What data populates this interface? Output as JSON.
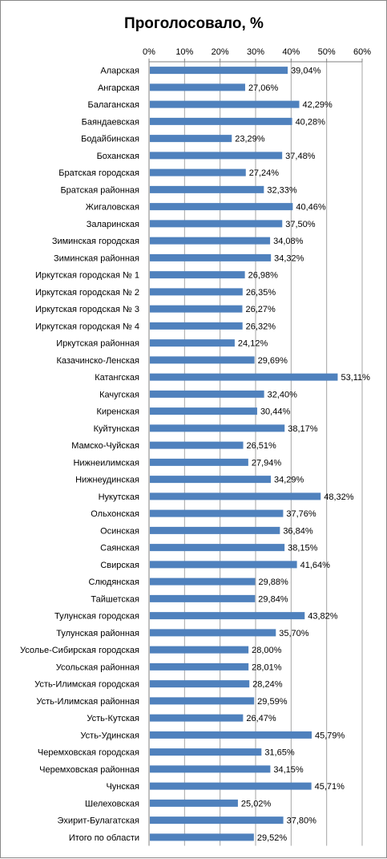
{
  "chart_data": {
    "type": "bar",
    "orientation": "horizontal",
    "title": "Проголосовало, %",
    "xlim": [
      0,
      60
    ],
    "x_ticks": [
      "0%",
      "10%",
      "20%",
      "30%",
      "40%",
      "50%",
      "60%"
    ],
    "grid": true,
    "legend": "none",
    "bar_color": "#4F81BD",
    "categories": [
      "Аларская",
      "Ангарская",
      "Балаганская",
      "Баяндаевская",
      "Бодайбинская",
      "Боханская",
      "Братская городская",
      "Братская районная",
      "Жигаловская",
      "Заларинская",
      "Зиминская городская",
      "Зиминская районная",
      "Иркутская городская № 1",
      "Иркутская городская № 2",
      "Иркутская городская № 3",
      "Иркутская городская № 4",
      "Иркутская районная",
      "Казачинско-Ленская",
      "Катангская",
      "Качугская",
      "Киренская",
      "Куйтунская",
      "Мамско-Чуйская",
      "Нижнеилимская",
      "Нижнеудинская",
      "Нукутская",
      "Ольхонская",
      "Осинская",
      "Саянская",
      "Свирская",
      "Слюдянская",
      "Тайшетская",
      "Тулунская городская",
      "Тулунская районная",
      "Усолье-Сибирская городская",
      "Усольская районная",
      "Усть-Илимская городская",
      "Усть-Илимская районная",
      "Усть-Кутская",
      "Усть-Удинская",
      "Черемховская городская",
      "Черемховская районная",
      "Чунская",
      "Шелеховская",
      "Эхирит-Булагатская",
      "Итого по области"
    ],
    "values": [
      39.04,
      27.06,
      42.29,
      40.28,
      23.29,
      37.48,
      27.24,
      32.33,
      40.46,
      37.5,
      34.08,
      34.32,
      26.98,
      26.35,
      26.27,
      26.32,
      24.12,
      29.69,
      53.11,
      32.4,
      30.44,
      38.17,
      26.51,
      27.94,
      34.29,
      48.32,
      37.76,
      36.84,
      38.15,
      41.64,
      29.88,
      29.84,
      43.82,
      35.7,
      28.0,
      28.01,
      28.24,
      29.59,
      26.47,
      45.79,
      31.65,
      34.15,
      45.71,
      25.02,
      37.8,
      29.52
    ],
    "data_labels": [
      "39,04%",
      "27,06%",
      "42,29%",
      "40,28%",
      "23,29%",
      "37,48%",
      "27,24%",
      "32,33%",
      "40,46%",
      "37,50%",
      "34,08%",
      "34,32%",
      "26,98%",
      "26,35%",
      "26,27%",
      "26,32%",
      "24,12%",
      "29,69%",
      "53,11%",
      "32,40%",
      "30,44%",
      "38,17%",
      "26,51%",
      "27,94%",
      "34,29%",
      "48,32%",
      "37,76%",
      "36,84%",
      "38,15%",
      "41,64%",
      "29,88%",
      "29,84%",
      "43,82%",
      "35,70%",
      "28,00%",
      "28,01%",
      "28,24%",
      "29,59%",
      "26,47%",
      "45,79%",
      "31,65%",
      "34,15%",
      "45,71%",
      "25,02%",
      "37,80%",
      "29,52%"
    ]
  }
}
